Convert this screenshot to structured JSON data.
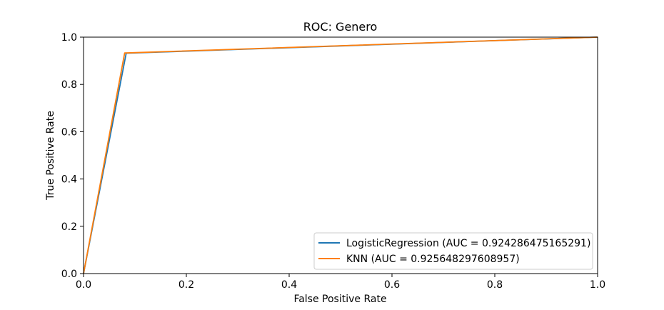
{
  "chart_data": {
    "type": "line",
    "title": "ROC: Genero",
    "xlabel": "False Positive Rate",
    "ylabel": "True Positive Rate",
    "xlim": [
      0.0,
      1.0
    ],
    "ylim": [
      0.0,
      1.0
    ],
    "x_ticks": [
      "0.0",
      "0.2",
      "0.4",
      "0.6",
      "0.8",
      "1.0"
    ],
    "y_ticks": [
      "0.0",
      "0.2",
      "0.4",
      "0.6",
      "0.8",
      "1.0"
    ],
    "grid": false,
    "legend_position": "lower-right",
    "series": [
      {
        "name": "LogisticRegression (AUC = 0.924286475165291)",
        "color": "#1f77b4",
        "x": [
          0.0,
          0.083,
          1.0
        ],
        "y": [
          0.0,
          0.932,
          1.0
        ]
      },
      {
        "name": "KNN (AUC = 0.925648297608957)",
        "color": "#ff7f0e",
        "x": [
          0.0,
          0.08,
          1.0
        ],
        "y": [
          0.0,
          0.933,
          1.0
        ]
      }
    ]
  }
}
